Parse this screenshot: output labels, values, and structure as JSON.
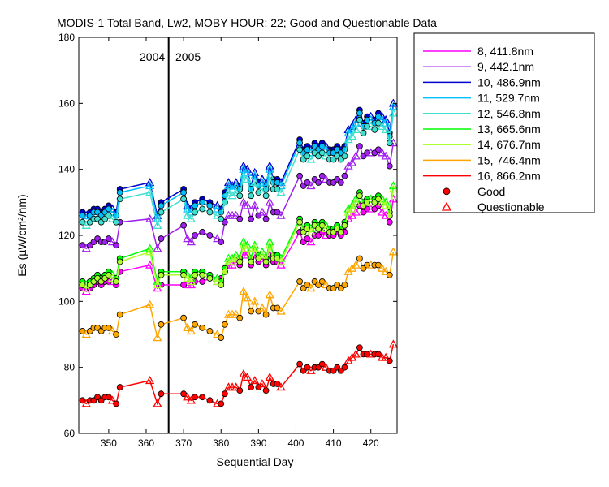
{
  "chart_data": {
    "type": "line",
    "title": "MODIS-1 Total Band,  Lw2, MOBY HOUR: 22;  Good and Questionable Data",
    "xlabel": "Sequential Day",
    "ylabel": "Es (µW/cm²/nm)",
    "xlim": [
      342,
      427
    ],
    "ylim": [
      60,
      180
    ],
    "xticks": [
      350,
      360,
      370,
      380,
      390,
      400,
      410,
      420
    ],
    "yticks": [
      60,
      80,
      100,
      120,
      140,
      160,
      180
    ],
    "year_divider": {
      "x": 366,
      "left_label": "2004",
      "right_label": "2005"
    },
    "legend": {
      "position": "right-outside",
      "good_label": "Good",
      "questionable_label": "Questionable"
    },
    "grid": false,
    "days": [
      343,
      344,
      345,
      346,
      347,
      348,
      349,
      350,
      351,
      352,
      353,
      361,
      363,
      364,
      370,
      371,
      372,
      373,
      375,
      377,
      379,
      380,
      381,
      382,
      383,
      384,
      385,
      386,
      387,
      388,
      389,
      390,
      391,
      392,
      393,
      394,
      395,
      396,
      401,
      402,
      403,
      404,
      405,
      406,
      407,
      408,
      409,
      410,
      411,
      412,
      413,
      414,
      415,
      416,
      417,
      418,
      419,
      420,
      421,
      422,
      423,
      424,
      425,
      426
    ],
    "flags": [
      "G",
      "Q",
      "G",
      "G",
      "G",
      "G",
      "G",
      "G",
      "Q",
      "G",
      "G",
      "Q",
      "Q",
      "G",
      "G",
      "Q",
      "Q",
      "G",
      "G",
      "G",
      "Q",
      "G",
      "G",
      "Q",
      "Q",
      "Q",
      "G",
      "Q",
      "Q",
      "G",
      "Q",
      "G",
      "Q",
      "G",
      "Q",
      "G",
      "G",
      "Q",
      "G",
      "G",
      "G",
      "Q",
      "G",
      "G",
      "G",
      "Q",
      "G",
      "G",
      "G",
      "G",
      "G",
      "Q",
      "Q",
      "Q",
      "G",
      "G",
      "G",
      "Q",
      "G",
      "G",
      "Q",
      "Q",
      "G",
      "Q"
    ],
    "series": [
      {
        "name": "8, 411.8nm",
        "color": "#ff00ff",
        "values": [
          104,
          103,
          104,
          105,
          106,
          105,
          106,
          106,
          106,
          105,
          109,
          111,
          104,
          105,
          105,
          105,
          105,
          106,
          106,
          107,
          106,
          107,
          109,
          111,
          111,
          112,
          111,
          115,
          114,
          111,
          114,
          112,
          113,
          111,
          114,
          112,
          112,
          111,
          121,
          118,
          119,
          118,
          120,
          120,
          121,
          120,
          120,
          120,
          121,
          120,
          121,
          125,
          126,
          127,
          129,
          127,
          128,
          128,
          128,
          129,
          127,
          126,
          124,
          131
        ]
      },
      {
        "name": "9, 442.1nm",
        "color": "#a020f0",
        "values": [
          117,
          116,
          117,
          118,
          119,
          118,
          118,
          119,
          118,
          117,
          124,
          125,
          116,
          119,
          123,
          119,
          118,
          120,
          121,
          120,
          119,
          118,
          124,
          126,
          126,
          126,
          125,
          130,
          129,
          125,
          129,
          126,
          127,
          125,
          130,
          127,
          127,
          126,
          138,
          135,
          136,
          135,
          137,
          136,
          138,
          137,
          136,
          136,
          137,
          136,
          138,
          141,
          142,
          144,
          147,
          144,
          145,
          145,
          145,
          146,
          145,
          144,
          141,
          148
        ]
      },
      {
        "name": "10, 486.9nm",
        "color": "#0000cd",
        "values": [
          127,
          126,
          127,
          128,
          128,
          127,
          128,
          129,
          128,
          127,
          134,
          136,
          126,
          130,
          134,
          129,
          128,
          130,
          131,
          130,
          129,
          128,
          133,
          136,
          135,
          136,
          135,
          141,
          140,
          135,
          139,
          136,
          137,
          135,
          141,
          137,
          137,
          136,
          149,
          146,
          147,
          146,
          148,
          147,
          148,
          147,
          146,
          146,
          147,
          146,
          147,
          152,
          153,
          155,
          158,
          154,
          156,
          156,
          155,
          157,
          156,
          155,
          151,
          160
        ]
      },
      {
        "name": "11, 529.7nm",
        "color": "#00bfff",
        "values": [
          126,
          125,
          126,
          127,
          127,
          126,
          127,
          128,
          127,
          126,
          133,
          135,
          125,
          129,
          133,
          128,
          127,
          129,
          130,
          129,
          128,
          127,
          132,
          135,
          134,
          135,
          134,
          140,
          139,
          134,
          138,
          135,
          136,
          134,
          140,
          136,
          136,
          135,
          148,
          145,
          146,
          145,
          147,
          146,
          147,
          146,
          145,
          145,
          146,
          145,
          146,
          151,
          152,
          154,
          157,
          153,
          155,
          155,
          154,
          156,
          155,
          154,
          150,
          159
        ]
      },
      {
        "name": "12, 546.8nm",
        "color": "#40e0d0",
        "values": [
          124,
          123,
          124,
          125,
          125,
          124,
          125,
          126,
          125,
          124,
          131,
          133,
          123,
          127,
          131,
          126,
          125,
          127,
          128,
          127,
          126,
          125,
          130,
          133,
          132,
          133,
          132,
          138,
          137,
          132,
          136,
          133,
          134,
          132,
          138,
          134,
          134,
          133,
          146,
          143,
          144,
          143,
          145,
          144,
          145,
          144,
          143,
          143,
          144,
          143,
          144,
          149,
          150,
          152,
          155,
          151,
          153,
          153,
          152,
          154,
          153,
          152,
          148,
          157
        ]
      },
      {
        "name": "13, 665.6nm",
        "color": "#00ff00",
        "values": [
          106,
          105,
          106,
          107,
          108,
          107,
          108,
          109,
          108,
          107,
          113,
          116,
          106,
          109,
          109,
          108,
          107,
          109,
          109,
          108,
          107,
          106,
          110,
          113,
          113,
          114,
          113,
          118,
          117,
          113,
          117,
          114,
          115,
          113,
          118,
          114,
          114,
          113,
          125,
          122,
          123,
          122,
          124,
          123,
          124,
          123,
          122,
          122,
          123,
          122,
          124,
          128,
          129,
          131,
          133,
          130,
          131,
          131,
          131,
          132,
          131,
          130,
          127,
          135
        ]
      },
      {
        "name": "14, 676.7nm",
        "color": "#adff2f",
        "values": [
          105,
          104,
          105,
          106,
          107,
          106,
          107,
          108,
          107,
          106,
          112,
          115,
          105,
          108,
          108,
          107,
          106,
          108,
          108,
          107,
          106,
          105,
          109,
          112,
          112,
          113,
          112,
          117,
          116,
          112,
          116,
          113,
          114,
          112,
          117,
          113,
          113,
          112,
          124,
          121,
          122,
          121,
          123,
          122,
          123,
          122,
          121,
          121,
          122,
          121,
          123,
          127,
          128,
          130,
          132,
          129,
          130,
          130,
          130,
          131,
          130,
          129,
          126,
          134
        ]
      },
      {
        "name": "15, 746.4nm",
        "color": "#ffa500",
        "values": [
          91,
          90,
          91,
          92,
          92,
          91,
          92,
          92,
          91,
          90,
          96,
          99,
          89,
          93,
          95,
          92,
          91,
          93,
          92,
          91,
          90,
          89,
          93,
          96,
          96,
          96,
          95,
          103,
          101,
          97,
          100,
          97,
          98,
          96,
          102,
          98,
          98,
          97,
          106,
          104,
          105,
          104,
          106,
          105,
          106,
          105,
          104,
          104,
          105,
          104,
          105,
          109,
          110,
          111,
          113,
          110,
          111,
          111,
          111,
          111,
          110,
          109,
          108,
          115
        ]
      },
      {
        "name": "16, 866.2nm",
        "color": "#ff0000",
        "values": [
          70,
          69,
          70,
          70,
          71,
          70,
          71,
          71,
          70,
          69,
          74,
          76,
          69,
          72,
          72,
          71,
          70,
          71,
          71,
          70,
          69,
          69,
          72,
          74,
          74,
          74,
          73,
          78,
          77,
          74,
          76,
          74,
          75,
          73,
          77,
          75,
          75,
          74,
          81,
          79,
          80,
          79,
          80,
          80,
          81,
          80,
          79,
          79,
          80,
          79,
          80,
          82,
          83,
          84,
          86,
          84,
          84,
          84,
          84,
          84,
          83,
          83,
          82,
          87
        ]
      }
    ]
  }
}
